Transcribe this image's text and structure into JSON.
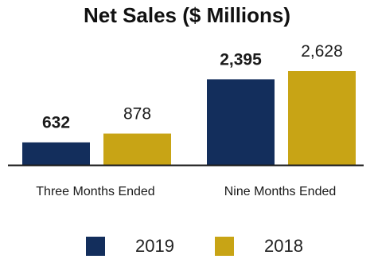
{
  "title": "Net Sales ($ Millions)",
  "chart_data": {
    "type": "bar",
    "title": "Net Sales ($ Millions)",
    "categories": [
      "Three Months Ended",
      "Nine Months Ended"
    ],
    "series": [
      {
        "name": "2019",
        "values": [
          632,
          2395
        ],
        "color": "#132e5c",
        "data_labels": [
          "632",
          "2,395"
        ],
        "label_weight": "bold"
      },
      {
        "name": "2018",
        "values": [
          878,
          2628
        ],
        "color": "#c8a415",
        "data_labels": [
          "878",
          "2,628"
        ],
        "label_weight": "normal"
      }
    ],
    "ylim": [
      0,
      2628
    ],
    "grid": false,
    "legend": "bottom"
  }
}
